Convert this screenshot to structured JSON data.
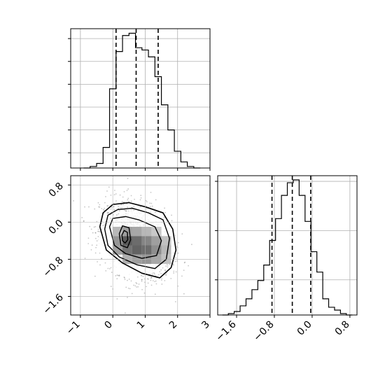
{
  "chart_data": [
    {
      "type": "histogram",
      "panel": "top-left",
      "xlim": [
        -1.3,
        3.0
      ],
      "bin_edges": [
        -0.9,
        -0.7,
        -0.5,
        -0.3,
        -0.1,
        0.1,
        0.3,
        0.5,
        0.7,
        0.9,
        1.1,
        1.3,
        1.5,
        1.7,
        1.9,
        2.1,
        2.3,
        2.5,
        2.7
      ],
      "counts": [
        0,
        2,
        6,
        27,
        104,
        153,
        174,
        177,
        158,
        155,
        146,
        120,
        83,
        50,
        22,
        8,
        2,
        0
      ],
      "ymax": 183,
      "quantile_lines": [
        0.1,
        0.72,
        1.4
      ],
      "line_style": "dashed",
      "grid": true
    },
    {
      "type": "histogram",
      "panel": "bottom-right",
      "xlim": [
        -2.0,
        0.95
      ],
      "bin_edges": [
        -1.9,
        -1.775,
        -1.65,
        -1.525,
        -1.4,
        -1.275,
        -1.15,
        -1.025,
        -0.9,
        -0.775,
        -0.65,
        -0.525,
        -0.4,
        -0.275,
        -0.15,
        -0.025,
        0.1,
        0.225,
        0.35,
        0.475,
        0.6,
        0.725,
        0.85
      ],
      "counts": [
        0,
        2,
        5,
        13,
        23,
        36,
        49,
        71,
        106,
        137,
        170,
        188,
        192,
        170,
        133,
        90,
        61,
        23,
        11,
        7,
        2,
        0
      ],
      "ymax": 198,
      "quantile_lines": [
        -0.85,
        -0.42,
        -0.03
      ],
      "line_style": "dashed",
      "grid": true,
      "xticks": [
        -1.6,
        -0.8,
        0.0,
        0.8
      ],
      "xtick_labels": [
        "−1.6",
        "−0.8",
        "0.0",
        "0.8"
      ]
    },
    {
      "type": "heatmap",
      "panel": "bottom-left",
      "xlim": [
        -1.3,
        3.0
      ],
      "ylim": [
        -2.0,
        1.0
      ],
      "xticks": [
        -1,
        0,
        1,
        2,
        3
      ],
      "xtick_labels": [
        "−1",
        "0",
        "1",
        "2",
        "3"
      ],
      "yticks": [
        0.8,
        0.0,
        -0.8,
        -1.6
      ],
      "ytick_labels": [
        "0.8",
        "0.0",
        "−0.8",
        "−1.6"
      ],
      "grid": true,
      "center": [
        0.7,
        -0.42
      ],
      "scatter_sigma": [
        0.55,
        0.4
      ],
      "density_cells": [
        {
          "x": 0.0,
          "y": -0.1,
          "level": 0.3
        },
        {
          "x": 0.3,
          "y": -0.1,
          "level": 0.45
        },
        {
          "x": 0.6,
          "y": -0.1,
          "level": 0.4
        },
        {
          "x": 0.9,
          "y": -0.1,
          "level": 0.3
        },
        {
          "x": 1.2,
          "y": -0.1,
          "level": 0.2
        },
        {
          "x": 0.0,
          "y": -0.3,
          "level": 0.5
        },
        {
          "x": 0.3,
          "y": -0.3,
          "level": 0.85
        },
        {
          "x": 0.6,
          "y": -0.3,
          "level": 0.75
        },
        {
          "x": 0.9,
          "y": -0.3,
          "level": 0.6
        },
        {
          "x": 1.2,
          "y": -0.3,
          "level": 0.45
        },
        {
          "x": 1.5,
          "y": -0.3,
          "level": 0.25
        },
        {
          "x": 0.0,
          "y": -0.5,
          "level": 0.45
        },
        {
          "x": 0.3,
          "y": -0.5,
          "level": 0.7
        },
        {
          "x": 0.6,
          "y": -0.5,
          "level": 0.8
        },
        {
          "x": 0.9,
          "y": -0.5,
          "level": 0.75
        },
        {
          "x": 1.2,
          "y": -0.5,
          "level": 0.55
        },
        {
          "x": 1.5,
          "y": -0.5,
          "level": 0.3
        },
        {
          "x": 0.3,
          "y": -0.7,
          "level": 0.35
        },
        {
          "x": 0.6,
          "y": -0.7,
          "level": 0.45
        },
        {
          "x": 0.9,
          "y": -0.7,
          "level": 0.5
        },
        {
          "x": 1.2,
          "y": -0.7,
          "level": 0.4
        },
        {
          "x": 1.5,
          "y": -0.7,
          "level": 0.25
        }
      ],
      "contours": [
        [
          [
            -0.4,
            -0.1
          ],
          [
            -0.3,
            0.2
          ],
          [
            0.0,
            0.38
          ],
          [
            0.5,
            0.42
          ],
          [
            1.0,
            0.33
          ],
          [
            1.55,
            0.2
          ],
          [
            1.85,
            -0.15
          ],
          [
            1.95,
            -0.6
          ],
          [
            1.8,
            -0.98
          ],
          [
            1.45,
            -1.2
          ],
          [
            0.9,
            -1.1
          ],
          [
            0.3,
            -0.88
          ],
          [
            -0.2,
            -0.6
          ],
          [
            -0.4,
            -0.1
          ]
        ],
        [
          [
            -0.25,
            -0.15
          ],
          [
            -0.15,
            0.15
          ],
          [
            0.15,
            0.27
          ],
          [
            0.6,
            0.3
          ],
          [
            1.1,
            0.2
          ],
          [
            1.55,
            0.05
          ],
          [
            1.75,
            -0.35
          ],
          [
            1.65,
            -0.8
          ],
          [
            1.3,
            -1.0
          ],
          [
            0.75,
            -0.92
          ],
          [
            0.2,
            -0.75
          ],
          [
            -0.15,
            -0.5
          ],
          [
            -0.25,
            -0.15
          ]
        ],
        [
          [
            -0.1,
            -0.1
          ],
          [
            0.0,
            0.08
          ],
          [
            0.4,
            0.12
          ],
          [
            0.8,
            0.05
          ],
          [
            1.3,
            -0.1
          ],
          [
            1.5,
            -0.4
          ],
          [
            1.35,
            -0.72
          ],
          [
            0.9,
            -0.78
          ],
          [
            0.4,
            -0.68
          ],
          [
            0.05,
            -0.5
          ],
          [
            -0.1,
            -0.1
          ]
        ],
        [
          [
            0.2,
            -0.25
          ],
          [
            0.3,
            -0.08
          ],
          [
            0.5,
            -0.12
          ],
          [
            0.55,
            -0.38
          ],
          [
            0.45,
            -0.55
          ],
          [
            0.25,
            -0.5
          ],
          [
            0.2,
            -0.25
          ]
        ],
        [
          [
            0.28,
            -0.28
          ],
          [
            0.35,
            -0.18
          ],
          [
            0.45,
            -0.22
          ],
          [
            0.46,
            -0.38
          ],
          [
            0.38,
            -0.45
          ],
          [
            0.3,
            -0.4
          ],
          [
            0.28,
            -0.28
          ]
        ]
      ]
    }
  ]
}
